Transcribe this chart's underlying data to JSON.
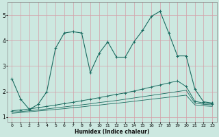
{
  "xlabel": "Humidex (Indice chaleur)",
  "background_color": "#cce8e0",
  "grid_color": "#d4a0a8",
  "line_color": "#1a6b60",
  "xlim": [
    -0.5,
    23.5
  ],
  "ylim": [
    0.8,
    5.5
  ],
  "xticks": [
    0,
    1,
    2,
    3,
    4,
    5,
    6,
    7,
    8,
    9,
    10,
    11,
    12,
    13,
    14,
    15,
    16,
    17,
    18,
    19,
    20,
    21,
    22,
    23
  ],
  "yticks": [
    1,
    2,
    3,
    4,
    5
  ],
  "series1_x": [
    0,
    1,
    2,
    3,
    4,
    5,
    6,
    7,
    8,
    9,
    10,
    11,
    12,
    13,
    14,
    15,
    16,
    17,
    18,
    19,
    20,
    21,
    22,
    23
  ],
  "series1_y": [
    2.5,
    1.7,
    1.3,
    1.5,
    2.0,
    3.7,
    4.3,
    4.35,
    4.3,
    2.75,
    3.5,
    3.95,
    3.35,
    3.35,
    3.95,
    4.4,
    4.95,
    5.15,
    4.3,
    3.4,
    3.4,
    2.1,
    1.6,
    1.55
  ],
  "series2_x": [
    0,
    1,
    2,
    3,
    4,
    5,
    6,
    7,
    8,
    9,
    10,
    11,
    12,
    13,
    14,
    15,
    16,
    17,
    18,
    19,
    20,
    21,
    22,
    23
  ],
  "series2_y": [
    1.25,
    1.28,
    1.32,
    1.37,
    1.42,
    1.47,
    1.53,
    1.58,
    1.64,
    1.7,
    1.76,
    1.83,
    1.89,
    1.95,
    2.02,
    2.1,
    2.18,
    2.26,
    2.34,
    2.42,
    2.2,
    1.62,
    1.55,
    1.52
  ],
  "series3_x": [
    0,
    1,
    2,
    3,
    4,
    5,
    6,
    7,
    8,
    9,
    10,
    11,
    12,
    13,
    14,
    15,
    16,
    17,
    18,
    19,
    20,
    21,
    22,
    23
  ],
  "series3_y": [
    1.2,
    1.22,
    1.25,
    1.28,
    1.32,
    1.36,
    1.4,
    1.44,
    1.48,
    1.52,
    1.57,
    1.61,
    1.65,
    1.7,
    1.75,
    1.8,
    1.85,
    1.9,
    1.95,
    2.0,
    2.05,
    1.55,
    1.5,
    1.48
  ],
  "series4_x": [
    0,
    1,
    2,
    3,
    4,
    5,
    6,
    7,
    8,
    9,
    10,
    11,
    12,
    13,
    14,
    15,
    16,
    17,
    18,
    19,
    20,
    21,
    22,
    23
  ],
  "series4_y": [
    1.15,
    1.18,
    1.21,
    1.24,
    1.27,
    1.3,
    1.33,
    1.37,
    1.4,
    1.44,
    1.47,
    1.51,
    1.54,
    1.58,
    1.62,
    1.66,
    1.7,
    1.74,
    1.78,
    1.82,
    1.86,
    1.48,
    1.44,
    1.42
  ]
}
